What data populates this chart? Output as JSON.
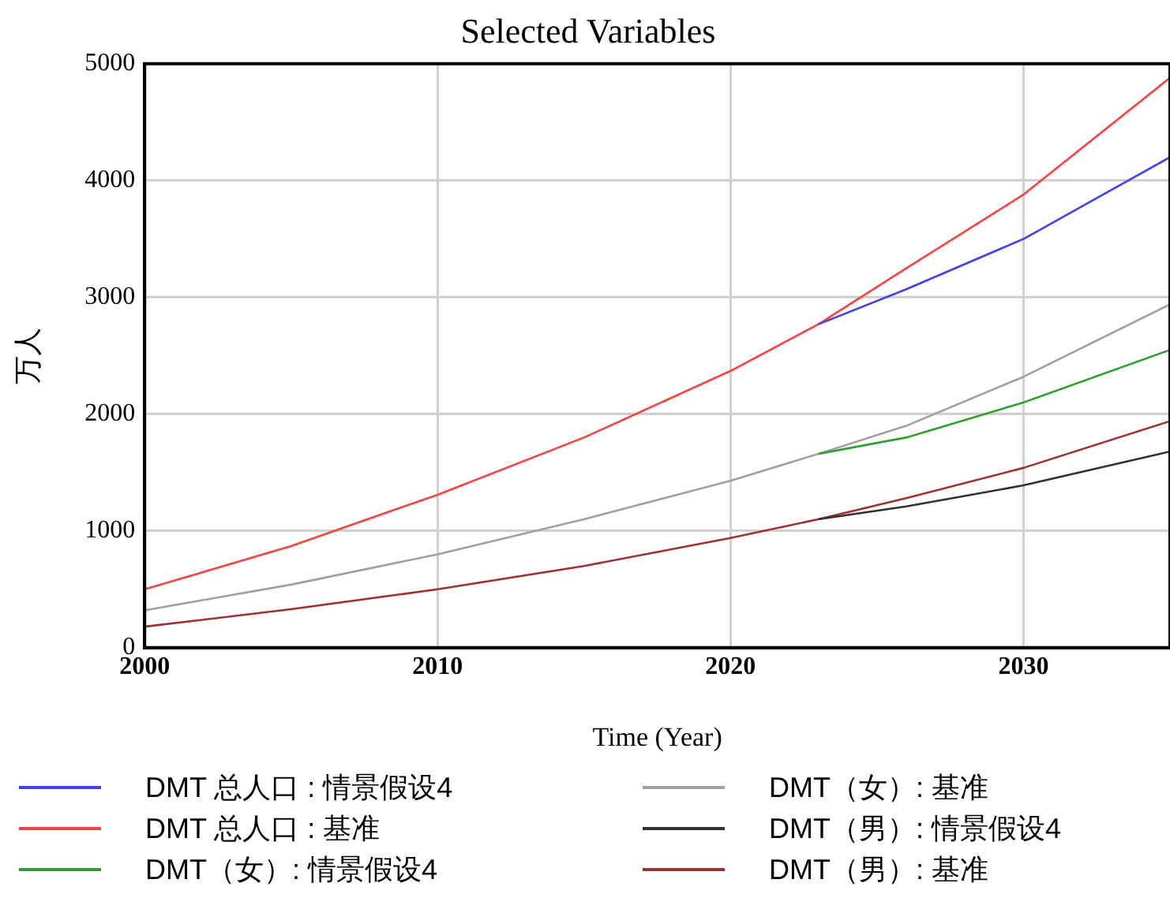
{
  "chart_data": {
    "type": "line",
    "title": "Selected Variables",
    "xlabel": "Time (Year)",
    "ylabel": "万人",
    "x": [
      2000,
      2005,
      2010,
      2015,
      2020,
      2023,
      2026,
      2030,
      2035
    ],
    "series": [
      {
        "name": "DMT 总人口 : 情景假设4",
        "color": "#4040ff",
        "values": [
          null,
          null,
          null,
          null,
          null,
          2770,
          3070,
          3500,
          4200
        ]
      },
      {
        "name": "DMT 总人口 : 基准",
        "color": "#ff4040",
        "values": [
          500,
          870,
          1310,
          1800,
          2370,
          2770,
          3250,
          3880,
          4880
        ]
      },
      {
        "name": "DMT（女）: 情景假设4",
        "color": "#30a030",
        "values": [
          null,
          null,
          null,
          null,
          null,
          1660,
          1800,
          2100,
          2550
        ]
      },
      {
        "name": "DMT（女）: 基准",
        "color": "#a0a0a0",
        "values": [
          320,
          540,
          800,
          1100,
          1430,
          1660,
          1900,
          2320,
          2940
        ]
      },
      {
        "name": "DMT（男）: 情景假设4",
        "color": "#303030",
        "values": [
          null,
          null,
          null,
          null,
          null,
          1100,
          1210,
          1390,
          1680
        ]
      },
      {
        "name": "DMT（男）: 基准",
        "color": "#a03030",
        "values": [
          180,
          330,
          500,
          700,
          940,
          1100,
          1280,
          1540,
          1940
        ]
      }
    ],
    "xlim": [
      2000,
      2035
    ],
    "xticks": [
      2000,
      2010,
      2020,
      2030
    ],
    "ylim": [
      0,
      5000
    ],
    "yticks": [
      0,
      1000,
      2000,
      3000,
      4000,
      5000
    ],
    "grid": true,
    "legend": "bottom",
    "marker": "none",
    "line_style": "solid"
  }
}
